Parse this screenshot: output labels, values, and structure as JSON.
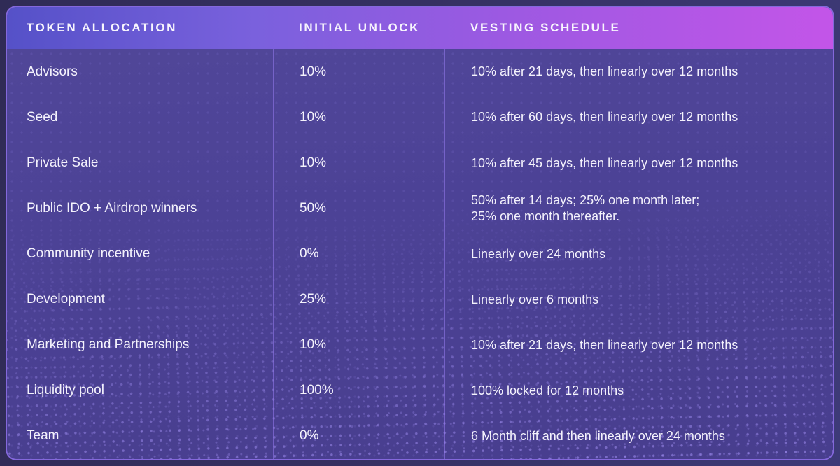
{
  "table": {
    "columns": [
      {
        "label": "TOKEN ALLOCATION"
      },
      {
        "label": "INITIAL UNLOCK"
      },
      {
        "label": "VESTING SCHEDULE"
      }
    ],
    "rows": [
      {
        "allocation": "Advisors",
        "initial_unlock": "10%",
        "vesting": "10% after 21 days, then linearly over 12 months"
      },
      {
        "allocation": "Seed",
        "initial_unlock": "10%",
        "vesting": "10% after 60 days, then linearly over 12 months"
      },
      {
        "allocation": "Private Sale",
        "initial_unlock": "10%",
        "vesting": "10% after 45 days, then linearly over 12 months"
      },
      {
        "allocation": "Public IDO + Airdrop winners",
        "initial_unlock": "50%",
        "vesting": "50% after 14 days; 25% one month later;\n25% one month thereafter."
      },
      {
        "allocation": "Community incentive",
        "initial_unlock": "0%",
        "vesting": "Linearly over 24 months"
      },
      {
        "allocation": "Development",
        "initial_unlock": "25%",
        "vesting": "Linearly over 6 months"
      },
      {
        "allocation": "Marketing and Partnerships",
        "initial_unlock": "10%",
        "vesting": "10% after 21 days, then linearly over 12 months"
      },
      {
        "allocation": "Liquidity pool",
        "initial_unlock": "100%",
        "vesting": "100% locked for 12 months"
      },
      {
        "allocation": "Team",
        "initial_unlock": "0%",
        "vesting": "6 Month cliff and then linearly over 24 months"
      }
    ]
  },
  "colors": {
    "outer_background": "#353061",
    "card_body": "#4c4296",
    "card_border": "#8468dc",
    "header_gradient_left": "#5551c8",
    "header_gradient_mid": "#9c59e2",
    "header_gradient_right": "#c355e8",
    "column_divider": "#977cf0",
    "text": "#f4f2fc",
    "dot_texture": "#ac98ff"
  }
}
